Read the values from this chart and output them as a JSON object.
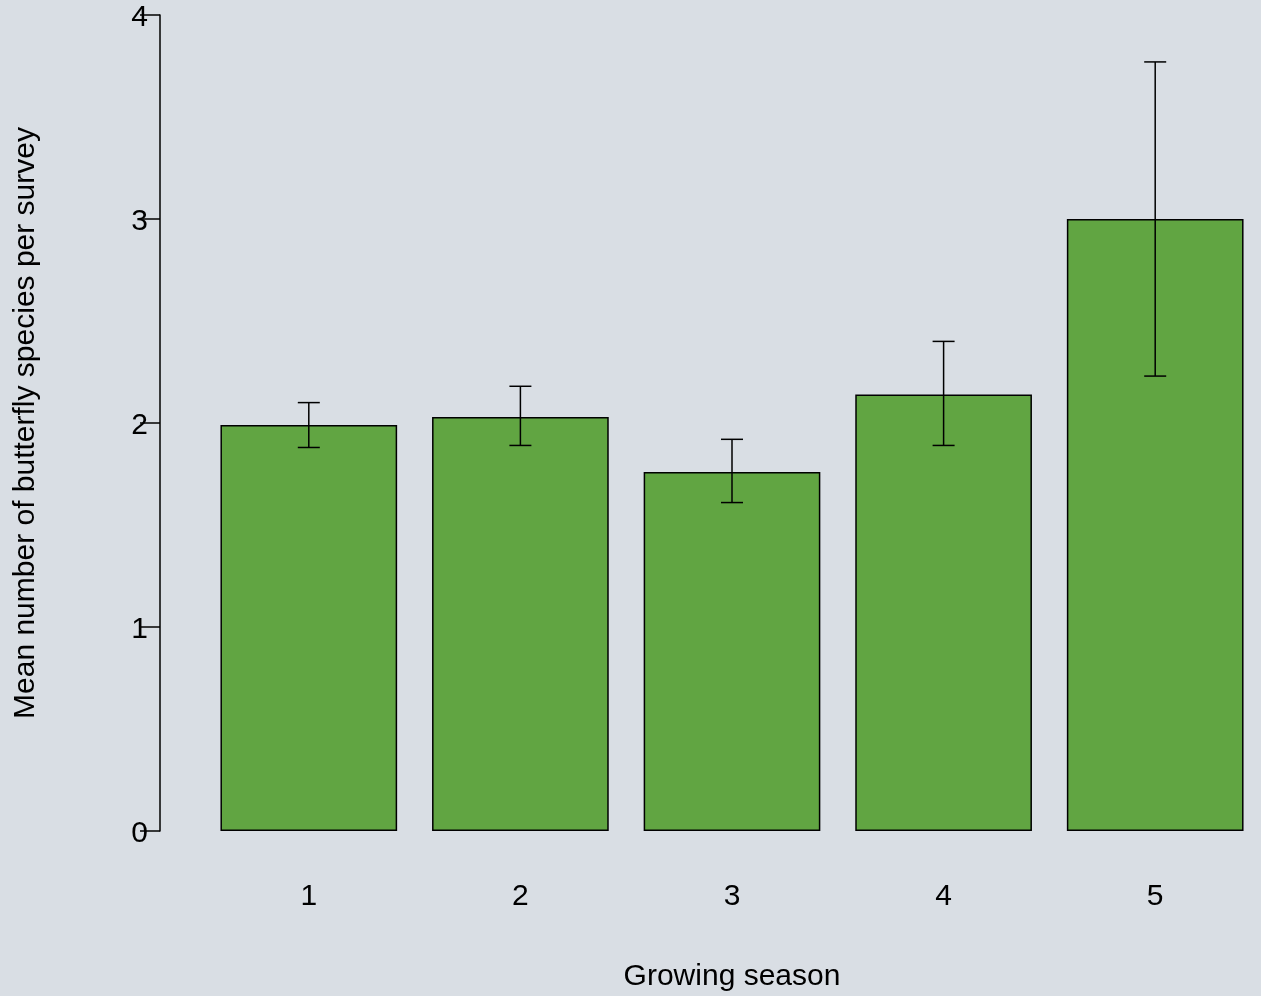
{
  "chart_data": {
    "type": "bar",
    "xlabel": "Growing season",
    "ylabel": "Mean number of butterfly species per survey",
    "categories": [
      "1",
      "2",
      "3",
      "4",
      "5"
    ],
    "values": [
      1.99,
      2.03,
      1.76,
      2.14,
      3.0
    ],
    "errors": [
      [
        1.88,
        2.1
      ],
      [
        1.89,
        2.18
      ],
      [
        1.61,
        1.92
      ],
      [
        1.89,
        2.4
      ],
      [
        2.23,
        3.77
      ]
    ],
    "color": "#61a542",
    "ylim": [
      0,
      4
    ],
    "yticks": [
      0,
      1,
      2,
      3,
      4
    ]
  }
}
